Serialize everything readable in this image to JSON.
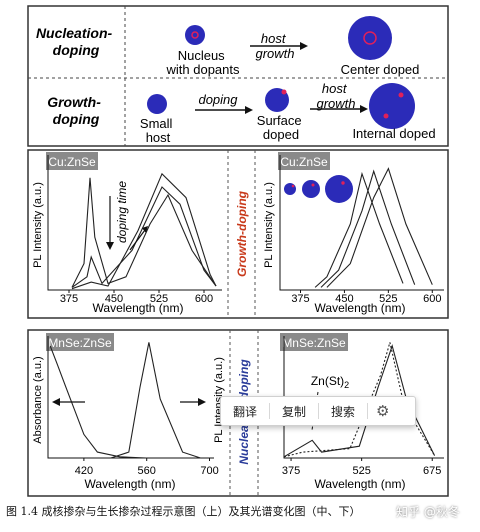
{
  "schematic": {
    "nucleation_title": "Nucleation-\ndoping",
    "nucleus_label": "Nucleus\nwith dopants",
    "host_growth_1": "host\ngrowth",
    "center_doped": "Center doped",
    "growth_title": "Growth-\ndoping",
    "small_host": "Small\nhost",
    "doping": "doping",
    "surface_doped": "Surface\ndoped",
    "host_growth_2": "host\ngrowth",
    "internal_doped": "Internal doped"
  },
  "middle_panel": {
    "left_tag": "Cu:ZnSe",
    "right_tag": "Cu:ZnSe",
    "center_label": "Growth-doping",
    "doping_time": "doping time",
    "ylabel": "PL Intensity (a.u.)",
    "xlabel": "Wavelength (nm)",
    "left_ticks": [
      "375",
      "450",
      "525",
      "600"
    ],
    "right_ticks": [
      "375",
      "450",
      "525",
      "600"
    ]
  },
  "bottom_panel": {
    "left_tag": "MnSe:ZnSe",
    "right_tag": "MnSe:ZnSe",
    "center_label": "Nucleation-doping",
    "left_ylabel": "Absorbance (a.u.)",
    "right_ylabel": "PL Intensity (a.u.)",
    "xlabel": "Wavelength (nm)",
    "zn_label": "Zn(St)",
    "zn_sub": "2",
    "left_ticks": [
      "420",
      "560",
      "700"
    ],
    "right_ticks": [
      "375",
      "525",
      "675"
    ]
  },
  "context_menu": {
    "translate": "翻译",
    "copy": "复制",
    "search": "搜索",
    "settings_icon": "gear-icon"
  },
  "caption": "图 1.4  成核掺杂与生长掺杂过程示意图（上）及其光谱变化图（中、下）",
  "watermark": "知乎 @秋冬",
  "colors": {
    "dot_blue": "#2b2bb8",
    "dopant_red": "#e0205a",
    "orange_label": "#c8391a",
    "blue_label": "#2a3c9a",
    "tag_gray": "#8a8a8a"
  },
  "chart_data": [
    {
      "type": "line",
      "title": "Cu:ZnSe",
      "xlabel": "Wavelength (nm)",
      "ylabel": "PL Intensity (a.u.)",
      "xlim": [
        340,
        630
      ],
      "x_ticks": [
        375,
        450,
        525,
        600
      ],
      "annotation": "doping time",
      "series": [
        {
          "values": [
            [
              380,
              0.02
            ],
            [
              400,
              0.2
            ],
            [
              410,
              0.85
            ],
            [
              418,
              0.4
            ],
            [
              440,
              0.05
            ],
            [
              470,
              0.1
            ],
            [
              510,
              0.5
            ],
            [
              540,
              0.72
            ],
            [
              580,
              0.3
            ],
            [
              620,
              0.03
            ]
          ]
        },
        {
          "values": [
            [
              380,
              0.02
            ],
            [
              405,
              0.1
            ],
            [
              412,
              0.25
            ],
            [
              430,
              0.05
            ],
            [
              480,
              0.3
            ],
            [
              530,
              0.78
            ],
            [
              560,
              0.65
            ],
            [
              600,
              0.15
            ],
            [
              620,
              0.03
            ]
          ]
        },
        {
          "values": [
            [
              380,
              0.01
            ],
            [
              412,
              0.06
            ],
            [
              440,
              0.03
            ],
            [
              490,
              0.45
            ],
            [
              530,
              0.88
            ],
            [
              570,
              0.7
            ],
            [
              610,
              0.12
            ],
            [
              620,
              0.03
            ]
          ]
        }
      ]
    },
    {
      "type": "line",
      "title": "Cu:ZnSe",
      "xlabel": "Wavelength (nm)",
      "ylabel": "PL Intensity (a.u.)",
      "xlim": [
        340,
        620
      ],
      "x_ticks": [
        375,
        450,
        525,
        600
      ],
      "series": [
        {
          "values": [
            [
              400,
              0.02
            ],
            [
              420,
              0.1
            ],
            [
              460,
              0.5
            ],
            [
              480,
              0.88
            ],
            [
              510,
              0.5
            ],
            [
              550,
              0.05
            ]
          ]
        },
        {
          "values": [
            [
              410,
              0.02
            ],
            [
              440,
              0.15
            ],
            [
              480,
              0.6
            ],
            [
              500,
              0.9
            ],
            [
              530,
              0.5
            ],
            [
              570,
              0.04
            ]
          ]
        },
        {
          "values": [
            [
              420,
              0.02
            ],
            [
              460,
              0.2
            ],
            [
              500,
              0.7
            ],
            [
              525,
              0.92
            ],
            [
              555,
              0.5
            ],
            [
              600,
              0.04
            ]
          ]
        }
      ]
    },
    {
      "type": "line",
      "title": "MnSe:ZnSe",
      "xlabel": "Wavelength (nm)",
      "ylabel": "Absorbance (a.u.)",
      "xlim": [
        340,
        710
      ],
      "x_ticks": [
        420,
        560,
        700
      ],
      "series": [
        {
          "name": "Absorbance",
          "values": [
            [
              345,
              0.95
            ],
            [
              360,
              0.8
            ],
            [
              380,
              0.6
            ],
            [
              420,
              0.2
            ],
            [
              450,
              0.05
            ],
            [
              500,
              0.01
            ],
            [
              560,
              0.0
            ]
          ]
        },
        {
          "name": "PL",
          "values": [
            [
              480,
              0.0
            ],
            [
              520,
              0.05
            ],
            [
              545,
              0.6
            ],
            [
              565,
              0.98
            ],
            [
              590,
              0.5
            ],
            [
              640,
              0.05
            ],
            [
              680,
              0.0
            ]
          ]
        }
      ]
    },
    {
      "type": "line",
      "title": "MnSe:ZnSe",
      "xlabel": "Wavelength (nm)",
      "ylabel": "PL Intensity (a.u.)",
      "xlim": [
        360,
        700
      ],
      "x_ticks": [
        375,
        525,
        675
      ],
      "annotation": "Zn(St)2",
      "series": [
        {
          "values": [
            [
              360,
              0.01
            ],
            [
              420,
              0.15
            ],
            [
              440,
              0.05
            ],
            [
              520,
              0.1
            ],
            [
              560,
              0.6
            ],
            [
              590,
              0.95
            ],
            [
              620,
              0.5
            ],
            [
              680,
              0.02
            ]
          ]
        },
        {
          "values": [
            [
              360,
              0.01
            ],
            [
              400,
              0.05
            ],
            [
              500,
              0.08
            ],
            [
              565,
              0.7
            ],
            [
              585,
              0.98
            ],
            [
              615,
              0.45
            ],
            [
              680,
              0.02
            ]
          ]
        }
      ]
    }
  ]
}
